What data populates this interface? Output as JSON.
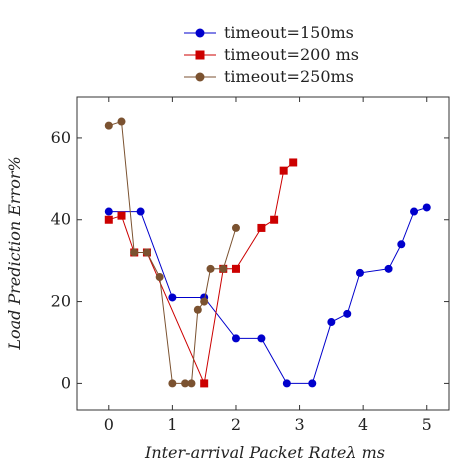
{
  "chart_data": {
    "type": "line",
    "xlabel": "Inter-arrival Packet Rateλ ms",
    "ylabel": "Load Prediction Error%",
    "xlim": [
      -0.5,
      5.35
    ],
    "ylim": [
      -6.5,
      70
    ],
    "xticks": [
      0,
      1,
      2,
      3,
      4,
      5
    ],
    "yticks": [
      0,
      20,
      40,
      60
    ],
    "legend_position": "top-center, above plot",
    "grid": false,
    "series": [
      {
        "name": "timeout=150ms",
        "color": "#0000cc",
        "marker": "circle",
        "x": [
          0,
          0.5,
          1,
          1.5,
          2,
          2.4,
          2.8,
          3.2,
          3.5,
          3.75,
          3.95,
          4.4,
          4.6,
          4.8,
          5
        ],
        "y": [
          42,
          42,
          21,
          21,
          11,
          11,
          0,
          0,
          15,
          17,
          27,
          28,
          34,
          42,
          43
        ]
      },
      {
        "name": "timeout=200 ms",
        "color": "#cc0000",
        "marker": "square",
        "x": [
          0,
          0.2,
          0.4,
          0.6,
          1.5,
          1.8,
          2,
          2.4,
          2.6,
          2.75,
          2.9
        ],
        "y": [
          40,
          41,
          32,
          32,
          0,
          28,
          28,
          38,
          40,
          52,
          54
        ]
      },
      {
        "name": "timeout=250ms",
        "color": "#7b5230",
        "marker": "circle",
        "x": [
          0,
          0.2,
          0.4,
          0.6,
          0.8,
          1,
          1.2,
          1.3,
          1.4,
          1.5,
          1.6,
          1.8,
          2
        ],
        "y": [
          63,
          64,
          32,
          32,
          26,
          0,
          0,
          0,
          18,
          20,
          28,
          28,
          38
        ]
      }
    ]
  }
}
